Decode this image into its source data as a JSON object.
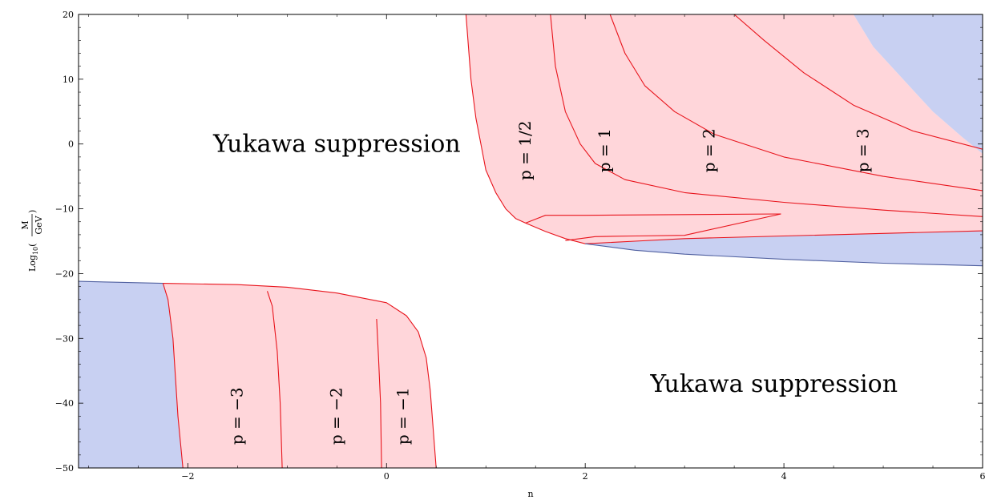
{
  "chart_data": {
    "type": "area",
    "title": "",
    "xlabel": "n",
    "ylabel": {
      "prefix": "Log",
      "sub": "10",
      "numerator": "M",
      "denominator": "GeV"
    },
    "xlim": [
      -3.1,
      6
    ],
    "ylim": [
      -50,
      20
    ],
    "x_ticks": [
      -2,
      0,
      2,
      4,
      6
    ],
    "y_ticks": [
      20,
      10,
      0,
      -10,
      -20,
      -30,
      -40,
      -50
    ],
    "x_tick_labels": [
      "−2",
      "0",
      "2",
      "4",
      "6"
    ],
    "y_tick_labels": [
      "20",
      "10",
      "0",
      "−10",
      "−20",
      "−30",
      "−40",
      "−50"
    ],
    "colors": {
      "pink": "#ffd6da",
      "blue": "#c8d0f2",
      "red": "#e8141c",
      "navy": "#5060a0"
    },
    "annotations": [
      {
        "text": "Yukawa suppression",
        "x": -0.5,
        "y": 0
      },
      {
        "text": "Yukawa suppression",
        "x": 3.9,
        "y": -37
      }
    ],
    "p_labels": [
      {
        "text": "p = 1/2",
        "x": 1.45,
        "y": -1
      },
      {
        "text": "p = 1",
        "x": 2.25,
        "y": -1
      },
      {
        "text": "p = 2",
        "x": 3.3,
        "y": -1
      },
      {
        "text": "p = 3",
        "x": 4.85,
        "y": -1
      },
      {
        "text": "p = −3",
        "x": -1.45,
        "y": -42
      },
      {
        "text": "p = −2",
        "x": -0.45,
        "y": -42
      },
      {
        "text": "p = −1",
        "x": 0.22,
        "y": -42
      }
    ],
    "regions": [
      {
        "name": "upper-pink-region",
        "fill": "pink",
        "points": [
          [
            0.8,
            20
          ],
          [
            0.85,
            10
          ],
          [
            0.9,
            4
          ],
          [
            0.95,
            0
          ],
          [
            1.0,
            -4
          ],
          [
            1.1,
            -7.5
          ],
          [
            1.2,
            -10
          ],
          [
            1.3,
            -11.5
          ],
          [
            1.4,
            -12.2
          ],
          [
            1.6,
            -13.5
          ],
          [
            1.8,
            -14.6
          ],
          [
            2.0,
            -15.4
          ],
          [
            2.5,
            -15.0
          ],
          [
            3.0,
            -14.6
          ],
          [
            4.0,
            -14.2
          ],
          [
            5.0,
            -13.8
          ],
          [
            6.0,
            -13.4
          ],
          [
            6.0,
            -1.5
          ],
          [
            5.8,
            1
          ],
          [
            5.5,
            5
          ],
          [
            5.2,
            10
          ],
          [
            4.9,
            15
          ],
          [
            4.7,
            20
          ]
        ]
      },
      {
        "name": "upper-blue-region",
        "fill": "blue",
        "points": [
          [
            2.0,
            -15.4
          ],
          [
            2.5,
            -15.0
          ],
          [
            3.0,
            -14.6
          ],
          [
            4.0,
            -14.2
          ],
          [
            5.0,
            -13.8
          ],
          [
            6.0,
            -13.4
          ],
          [
            6.0,
            -18.8
          ],
          [
            5.0,
            -18.4
          ],
          [
            4.0,
            -17.8
          ],
          [
            3.0,
            -17.0
          ],
          [
            2.5,
            -16.4
          ]
        ]
      },
      {
        "name": "top-right-blue-region",
        "fill": "blue",
        "points": [
          [
            4.7,
            20
          ],
          [
            6.0,
            20
          ],
          [
            6.0,
            -1.5
          ],
          [
            5.8,
            1
          ],
          [
            5.5,
            5
          ],
          [
            5.2,
            10
          ],
          [
            4.9,
            15
          ]
        ]
      },
      {
        "name": "lower-pink-region",
        "fill": "pink",
        "points": [
          [
            -2.25,
            -21.5
          ],
          [
            -1.5,
            -21.7
          ],
          [
            -1.0,
            -22.1
          ],
          [
            -0.5,
            -23.0
          ],
          [
            0,
            -24.5
          ],
          [
            0.2,
            -26.5
          ],
          [
            0.32,
            -29
          ],
          [
            0.4,
            -33
          ],
          [
            0.44,
            -38
          ],
          [
            0.47,
            -44
          ],
          [
            0.5,
            -50
          ],
          [
            -2.05,
            -50
          ],
          [
            -2.1,
            -42
          ],
          [
            -2.15,
            -30
          ],
          [
            -2.2,
            -24
          ],
          [
            -2.25,
            -21.5
          ]
        ]
      },
      {
        "name": "lower-blue-region",
        "fill": "blue",
        "points": [
          [
            -3.1,
            -21.2
          ],
          [
            -2.25,
            -21.5
          ],
          [
            -2.2,
            -24
          ],
          [
            -2.15,
            -30
          ],
          [
            -2.1,
            -42
          ],
          [
            -2.05,
            -50
          ],
          [
            -3.1,
            -50
          ]
        ]
      }
    ],
    "curves": [
      {
        "name": "curve-p-half-boundary",
        "color": "red",
        "points": [
          [
            0.8,
            20
          ],
          [
            0.85,
            10
          ],
          [
            0.9,
            4
          ],
          [
            0.95,
            0
          ],
          [
            1.0,
            -4
          ],
          [
            1.1,
            -7.5
          ],
          [
            1.2,
            -10
          ],
          [
            1.3,
            -11.5
          ],
          [
            1.4,
            -12.2
          ],
          [
            1.6,
            -13.5
          ],
          [
            1.8,
            -14.6
          ],
          [
            2.0,
            -15.4
          ],
          [
            2.5,
            -15.0
          ],
          [
            3.0,
            -14.6
          ],
          [
            4.0,
            -14.2
          ],
          [
            5.0,
            -13.8
          ],
          [
            6.0,
            -13.4
          ]
        ]
      },
      {
        "name": "curve-p-half-inner",
        "color": "red",
        "points": [
          [
            1.4,
            -12.2
          ],
          [
            1.5,
            -11.6
          ],
          [
            1.6,
            -11.0
          ],
          [
            2.0,
            -11.0
          ],
          [
            3.0,
            -10.9
          ],
          [
            3.97,
            -10.8
          ]
        ]
      },
      {
        "name": "curve-p-half-lower",
        "color": "red",
        "points": [
          [
            1.8,
            -14.9
          ],
          [
            2.1,
            -14.3
          ],
          [
            2.5,
            -14.2
          ],
          [
            3.0,
            -14.1
          ],
          [
            3.97,
            -10.8
          ]
        ]
      },
      {
        "name": "curve-p-1",
        "color": "red",
        "points": [
          [
            1.65,
            20
          ],
          [
            1.7,
            12
          ],
          [
            1.8,
            5
          ],
          [
            1.95,
            0
          ],
          [
            2.1,
            -3
          ],
          [
            2.4,
            -5.5
          ],
          [
            3.0,
            -7.5
          ],
          [
            4.0,
            -9
          ],
          [
            5.0,
            -10.2
          ],
          [
            6.0,
            -11.2
          ]
        ]
      },
      {
        "name": "curve-p-2",
        "color": "red",
        "points": [
          [
            2.25,
            20
          ],
          [
            2.4,
            14
          ],
          [
            2.6,
            9
          ],
          [
            2.9,
            5
          ],
          [
            3.3,
            1.5
          ],
          [
            4.0,
            -2
          ],
          [
            5.0,
            -5
          ],
          [
            6.0,
            -7.2
          ]
        ]
      },
      {
        "name": "curve-p-3",
        "color": "red",
        "points": [
          [
            3.5,
            20
          ],
          [
            3.8,
            16
          ],
          [
            4.2,
            11
          ],
          [
            4.7,
            6
          ],
          [
            5.3,
            2
          ],
          [
            6.0,
            -0.8
          ]
        ]
      },
      {
        "name": "curve-upper-blue-bottom",
        "color": "navy",
        "points": [
          [
            2.0,
            -15.4
          ],
          [
            2.5,
            -16.4
          ],
          [
            3.0,
            -17.0
          ],
          [
            4.0,
            -17.8
          ],
          [
            5.0,
            -18.4
          ],
          [
            6.0,
            -18.8
          ]
        ]
      },
      {
        "name": "curve-lower-top",
        "color": "red",
        "points": [
          [
            -2.25,
            -21.5
          ],
          [
            -1.5,
            -21.7
          ],
          [
            -1.0,
            -22.1
          ],
          [
            -0.5,
            -23.0
          ],
          [
            0,
            -24.5
          ],
          [
            0.2,
            -26.5
          ],
          [
            0.32,
            -29
          ],
          [
            0.4,
            -33
          ],
          [
            0.44,
            -38
          ],
          [
            0.47,
            -44
          ],
          [
            0.5,
            -50
          ]
        ]
      },
      {
        "name": "curve-lower-blue-top",
        "color": "navy",
        "points": [
          [
            -3.1,
            -21.2
          ],
          [
            -2.25,
            -21.5
          ]
        ]
      },
      {
        "name": "curve-p-minus-3",
        "color": "red",
        "points": [
          [
            -2.25,
            -21.5
          ],
          [
            -2.2,
            -24
          ],
          [
            -2.15,
            -30
          ],
          [
            -2.1,
            -42
          ],
          [
            -2.05,
            -50
          ]
        ]
      },
      {
        "name": "curve-p-minus-2",
        "color": "red",
        "points": [
          [
            -1.2,
            -22.7
          ],
          [
            -1.15,
            -25
          ],
          [
            -1.1,
            -32
          ],
          [
            -1.07,
            -40
          ],
          [
            -1.05,
            -50
          ]
        ]
      },
      {
        "name": "curve-p-minus-1",
        "color": "red",
        "points": [
          [
            -0.1,
            -27
          ],
          [
            -0.08,
            -33
          ],
          [
            -0.06,
            -40
          ],
          [
            -0.05,
            -50
          ]
        ]
      }
    ]
  }
}
